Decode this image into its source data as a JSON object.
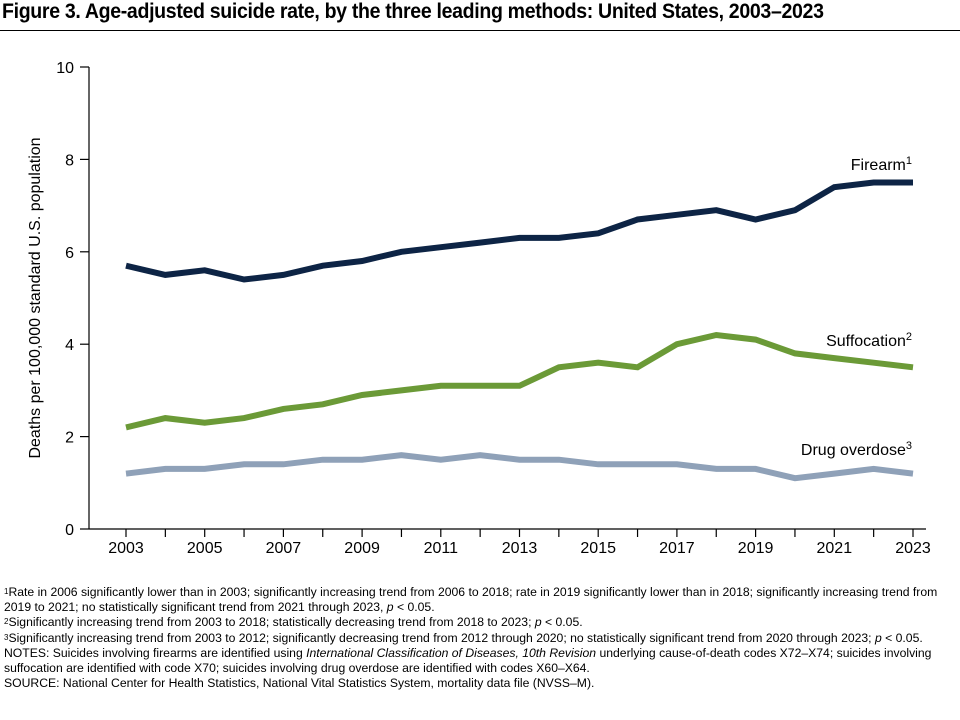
{
  "title": "Figure 3. Age-adjusted suicide rate, by the three leading methods: United States, 2003–2023",
  "chart_data": {
    "type": "line",
    "title": "Figure 3. Age-adjusted suicide rate, by the three leading methods: United States, 2003–2023",
    "ylabel": "Deaths per 100,000 standard U.S. population",
    "xlabel": "",
    "ylim": [
      0,
      10
    ],
    "yticks": [
      0,
      2,
      4,
      6,
      8,
      10
    ],
    "xlim": [
      2003,
      2023
    ],
    "xticks": [
      2003,
      2005,
      2007,
      2009,
      2011,
      2013,
      2015,
      2017,
      2019,
      2021,
      2023
    ],
    "grid": false,
    "legend": "direct labels at line ends",
    "x": [
      2003,
      2004,
      2005,
      2006,
      2007,
      2008,
      2009,
      2010,
      2011,
      2012,
      2013,
      2014,
      2015,
      2016,
      2017,
      2018,
      2019,
      2020,
      2021,
      2022,
      2023
    ],
    "series": [
      {
        "name": "Firearm",
        "sup": "1",
        "color": "#0d2445",
        "values": [
          5.7,
          5.5,
          5.6,
          5.4,
          5.5,
          5.7,
          5.8,
          6.0,
          6.1,
          6.2,
          6.3,
          6.3,
          6.4,
          6.7,
          6.8,
          6.9,
          6.7,
          6.9,
          7.4,
          7.5,
          7.5
        ]
      },
      {
        "name": "Suffocation",
        "sup": "2",
        "color": "#6b9a37",
        "values": [
          2.2,
          2.4,
          2.3,
          2.4,
          2.6,
          2.7,
          2.9,
          3.0,
          3.1,
          3.1,
          3.1,
          3.5,
          3.6,
          3.5,
          4.0,
          4.2,
          4.1,
          3.8,
          3.7,
          3.6,
          3.5
        ]
      },
      {
        "name": "Drug overdose",
        "sup": "3",
        "color": "#8fa1b8",
        "values": [
          1.2,
          1.3,
          1.3,
          1.4,
          1.4,
          1.5,
          1.5,
          1.6,
          1.5,
          1.6,
          1.5,
          1.5,
          1.4,
          1.4,
          1.4,
          1.3,
          1.3,
          1.1,
          1.2,
          1.3,
          1.2
        ]
      }
    ]
  },
  "notes": {
    "fn1_mark": "1",
    "fn1": "Rate in 2006 significantly lower than in 2003; significantly increasing trend from 2006 to 2018; rate in 2019 significantly lower than in 2018; significantly increasing trend from 2019 to 2021; no statistically significant trend from 2021 through 2023, ",
    "fn1_p": "p",
    "fn1_end": " < 0.05.",
    "fn2_mark": "2",
    "fn2": "Significantly increasing trend from 2003 to 2018; statistically decreasing trend from 2018 to 2023; ",
    "fn2_p": "p",
    "fn2_end": " < 0.05.",
    "fn3_mark": "3",
    "fn3": "Significantly increasing trend from 2003 to 2012; significantly decreasing trend from 2012 through 2020; no statistically significant trend from 2020 through 2023; ",
    "fn3_p": "p",
    "fn3_end": " < 0.05.",
    "notes_a": "NOTES: Suicides involving firearms are identified using ",
    "notes_icd": "International Classification of Diseases, 10th Revision",
    "notes_b": " underlying cause-of-death codes X72–X74; suicides involving suffocation are identified with code X70; suicides involving drug overdose are identified with codes X60–X64.",
    "source": "SOURCE: National Center for Health Statistics, National Vital Statistics System, mortality data file (NVSS–M)."
  }
}
